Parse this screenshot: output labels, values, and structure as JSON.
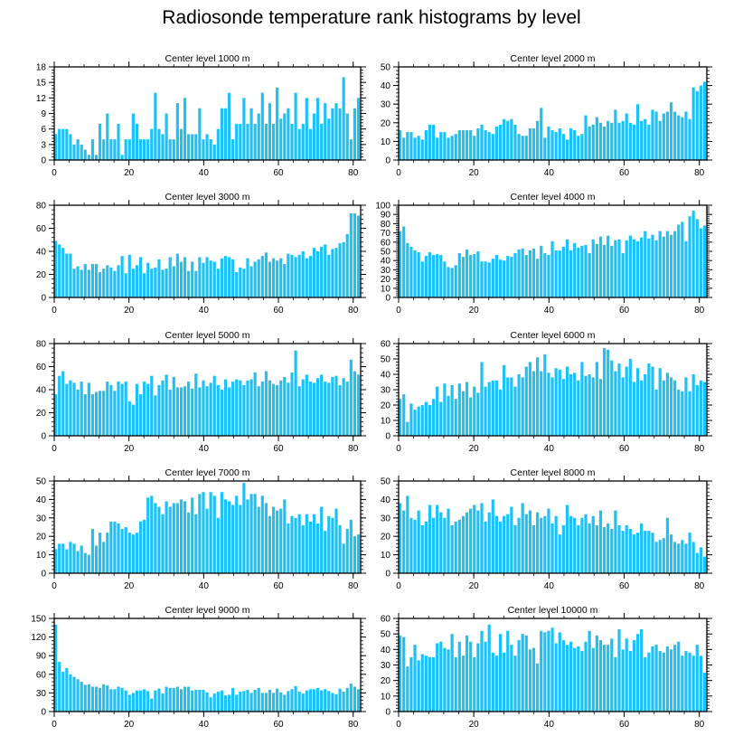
{
  "title": "Radiosonde temperature rank histograms by level",
  "colors": {
    "bar": "#1EC1F5",
    "bar_edge": "#0FB3EA",
    "axis": "#000000",
    "background": "#ffffff"
  },
  "chart_data": [
    {
      "type": "bar",
      "title": "Center level 1000 m",
      "xlabel": "",
      "ylabel": "",
      "xlim": [
        0,
        82
      ],
      "ylim": [
        0,
        18
      ],
      "xticks": [
        0,
        20,
        40,
        60,
        80
      ],
      "yticks": [
        0,
        3,
        6,
        9,
        12,
        15,
        18
      ],
      "ytick_side": "left",
      "values": [
        5,
        6,
        6,
        6,
        5,
        3,
        4,
        3,
        2,
        1,
        4,
        1,
        7,
        4,
        9,
        4,
        4,
        7,
        1,
        4,
        4,
        9,
        7,
        4,
        4,
        4,
        6,
        13,
        6,
        5,
        9,
        4,
        4,
        11,
        6,
        12,
        5,
        5,
        5,
        10,
        4,
        5,
        4,
        3,
        6,
        10,
        10,
        13,
        4,
        7,
        7,
        12,
        7,
        10,
        7,
        9,
        13,
        7,
        11,
        7,
        14,
        8,
        9,
        10,
        7,
        13,
        6,
        7,
        12,
        6,
        9,
        12,
        7,
        11,
        8,
        10,
        11,
        10,
        16,
        9,
        4,
        10,
        12
      ]
    },
    {
      "type": "bar",
      "title": "Center level 2000 m",
      "xlabel": "",
      "ylabel": "",
      "xlim": [
        0,
        82
      ],
      "ylim": [
        0,
        50
      ],
      "xticks": [
        0,
        20,
        40,
        60,
        80
      ],
      "yticks": [
        0,
        10,
        20,
        30,
        40,
        50
      ],
      "ytick_side": "left",
      "values": [
        16,
        12,
        15,
        15,
        12,
        13,
        11,
        16,
        19,
        19,
        12,
        15,
        15,
        12,
        13,
        14,
        16,
        16,
        16,
        16,
        13,
        17,
        19,
        16,
        15,
        14,
        18,
        19,
        22,
        21,
        22,
        19,
        14,
        13,
        13,
        17,
        17,
        21,
        28,
        12,
        18,
        16,
        15,
        17,
        14,
        11,
        17,
        16,
        13,
        14,
        24,
        18,
        19,
        23,
        20,
        18,
        21,
        20,
        27,
        20,
        21,
        25,
        20,
        19,
        30,
        21,
        22,
        19,
        27,
        26,
        21,
        25,
        26,
        31,
        26,
        24,
        23,
        26,
        22,
        39,
        37,
        40,
        42
      ]
    },
    {
      "type": "bar",
      "title": "Center level 3000 m",
      "xlabel": "",
      "ylabel": "",
      "xlim": [
        0,
        82
      ],
      "ylim": [
        0,
        80
      ],
      "xticks": [
        0,
        20,
        40,
        60,
        80
      ],
      "yticks": [
        0,
        20,
        40,
        60,
        80
      ],
      "ytick_side": "left",
      "values": [
        49,
        46,
        43,
        38,
        38,
        25,
        27,
        24,
        29,
        24,
        29,
        29,
        22,
        25,
        28,
        26,
        23,
        28,
        36,
        21,
        37,
        25,
        28,
        35,
        21,
        30,
        25,
        26,
        33,
        24,
        25,
        35,
        27,
        38,
        31,
        35,
        23,
        31,
        23,
        35,
        30,
        35,
        32,
        31,
        25,
        34,
        36,
        35,
        33,
        22,
        26,
        25,
        34,
        27,
        31,
        33,
        36,
        39,
        31,
        34,
        32,
        34,
        29,
        38,
        37,
        35,
        37,
        40,
        34,
        36,
        43,
        40,
        44,
        46,
        37,
        42,
        43,
        47,
        48,
        55,
        73,
        73,
        71
      ]
    },
    {
      "type": "bar",
      "title": "Center level 4000 m",
      "xlabel": "",
      "ylabel": "",
      "xlim": [
        0,
        82
      ],
      "ylim": [
        0,
        100
      ],
      "xticks": [
        0,
        20,
        40,
        60,
        80
      ],
      "yticks": [
        0,
        10,
        20,
        30,
        40,
        50,
        60,
        70,
        80,
        90,
        100
      ],
      "ytick_side": "left",
      "values": [
        72,
        77,
        59,
        55,
        51,
        49,
        39,
        45,
        49,
        46,
        47,
        46,
        39,
        33,
        32,
        35,
        48,
        44,
        52,
        46,
        47,
        50,
        39,
        39,
        38,
        42,
        46,
        41,
        40,
        45,
        44,
        48,
        52,
        53,
        46,
        51,
        53,
        42,
        56,
        48,
        46,
        61,
        51,
        51,
        55,
        63,
        51,
        59,
        54,
        56,
        57,
        48,
        63,
        58,
        66,
        57,
        67,
        56,
        62,
        63,
        48,
        62,
        67,
        63,
        61,
        65,
        72,
        64,
        68,
        62,
        72,
        66,
        72,
        68,
        72,
        79,
        82,
        61,
        88,
        94,
        85,
        75,
        78
      ]
    },
    {
      "type": "bar",
      "title": "Center level 5000 m",
      "xlabel": "",
      "ylabel": "",
      "xlim": [
        0,
        82
      ],
      "ylim": [
        0,
        80
      ],
      "xticks": [
        0,
        20,
        40,
        60,
        80
      ],
      "yticks": [
        0,
        20,
        40,
        60,
        80
      ],
      "ytick_side": "left",
      "values": [
        36,
        52,
        56,
        45,
        48,
        46,
        40,
        47,
        36,
        46,
        36,
        38,
        39,
        39,
        47,
        44,
        39,
        47,
        45,
        47,
        30,
        27,
        45,
        36,
        47,
        45,
        52,
        35,
        44,
        48,
        53,
        40,
        51,
        42,
        42,
        43,
        47,
        41,
        54,
        42,
        48,
        43,
        46,
        52,
        44,
        40,
        49,
        42,
        47,
        49,
        48,
        44,
        48,
        49,
        55,
        43,
        47,
        56,
        48,
        45,
        44,
        48,
        51,
        46,
        55,
        74,
        43,
        49,
        53,
        47,
        46,
        50,
        53,
        47,
        46,
        51,
        52,
        44,
        50,
        47,
        66,
        56,
        53
      ]
    },
    {
      "type": "bar",
      "title": "Center level 6000 m",
      "xlabel": "",
      "ylabel": "",
      "xlim": [
        0,
        82
      ],
      "ylim": [
        0,
        60
      ],
      "xticks": [
        0,
        20,
        40,
        60,
        80
      ],
      "yticks": [
        0,
        10,
        20,
        30,
        40,
        50,
        60
      ],
      "ytick_side": "left",
      "values": [
        24,
        27,
        9,
        21,
        17,
        19,
        20,
        22,
        20,
        24,
        32,
        22,
        34,
        26,
        33,
        24,
        34,
        29,
        35,
        25,
        32,
        28,
        48,
        32,
        35,
        36,
        36,
        30,
        46,
        38,
        38,
        32,
        40,
        38,
        45,
        48,
        42,
        51,
        42,
        53,
        41,
        38,
        44,
        43,
        37,
        45,
        40,
        41,
        36,
        48,
        39,
        40,
        38,
        48,
        37,
        57,
        56,
        49,
        42,
        47,
        38,
        45,
        50,
        35,
        44,
        36,
        40,
        47,
        45,
        30,
        44,
        36,
        41,
        38,
        36,
        30,
        29,
        38,
        29,
        40,
        33,
        36,
        35
      ]
    },
    {
      "type": "bar",
      "title": "Center level 7000 m",
      "xlabel": "",
      "ylabel": "",
      "xlim": [
        0,
        82
      ],
      "ylim": [
        0,
        50
      ],
      "xticks": [
        0,
        20,
        40,
        60,
        80
      ],
      "yticks": [
        0,
        10,
        20,
        30,
        40,
        50
      ],
      "ytick_side": "left",
      "values": [
        13,
        16,
        16,
        13,
        17,
        16,
        12,
        15,
        11,
        10,
        24,
        15,
        22,
        17,
        22,
        28,
        28,
        27,
        24,
        25,
        22,
        21,
        22,
        28,
        29,
        41,
        42,
        38,
        36,
        32,
        39,
        36,
        38,
        38,
        40,
        39,
        33,
        41,
        32,
        43,
        44,
        35,
        44,
        42,
        30,
        44,
        40,
        39,
        37,
        42,
        37,
        49,
        40,
        43,
        43,
        36,
        42,
        38,
        31,
        36,
        34,
        35,
        40,
        27,
        31,
        30,
        32,
        26,
        32,
        28,
        32,
        27,
        36,
        23,
        31,
        30,
        35,
        26,
        16,
        24,
        29,
        20,
        21
      ]
    },
    {
      "type": "bar",
      "title": "Center level 8000 m",
      "xlabel": "",
      "ylabel": "",
      "xlim": [
        0,
        82
      ],
      "ylim": [
        0,
        50
      ],
      "xticks": [
        0,
        20,
        40,
        60,
        80
      ],
      "yticks": [
        0,
        10,
        20,
        30,
        40,
        50
      ],
      "ytick_side": "left",
      "values": [
        38,
        34,
        42,
        30,
        29,
        34,
        26,
        28,
        37,
        30,
        37,
        33,
        30,
        35,
        26,
        28,
        29,
        31,
        33,
        35,
        37,
        34,
        38,
        28,
        33,
        40,
        31,
        28,
        31,
        32,
        36,
        26,
        30,
        38,
        32,
        34,
        26,
        33,
        30,
        31,
        35,
        27,
        31,
        21,
        26,
        37,
        31,
        30,
        26,
        30,
        32,
        27,
        31,
        26,
        34,
        25,
        27,
        24,
        34,
        26,
        23,
        26,
        24,
        21,
        22,
        27,
        23,
        23,
        22,
        17,
        18,
        19,
        30,
        21,
        17,
        16,
        18,
        16,
        22,
        17,
        11,
        14,
        9
      ]
    },
    {
      "type": "bar",
      "title": "Center level 9000 m",
      "xlabel": "",
      "ylabel": "",
      "xlim": [
        0,
        82
      ],
      "ylim": [
        0,
        150
      ],
      "xticks": [
        0,
        20,
        40,
        60,
        80
      ],
      "yticks": [
        0,
        30,
        60,
        90,
        120,
        150
      ],
      "ytick_side": "left",
      "values": [
        140,
        80,
        64,
        70,
        60,
        56,
        52,
        48,
        43,
        44,
        40,
        40,
        38,
        44,
        42,
        36,
        36,
        40,
        38,
        34,
        27,
        30,
        34,
        34,
        36,
        33,
        21,
        34,
        37,
        29,
        40,
        38,
        38,
        40,
        36,
        40,
        40,
        34,
        35,
        35,
        35,
        31,
        23,
        29,
        32,
        34,
        26,
        27,
        38,
        27,
        32,
        33,
        35,
        30,
        35,
        38,
        30,
        30,
        35,
        30,
        37,
        31,
        27,
        33,
        36,
        41,
        32,
        29,
        34,
        36,
        36,
        38,
        34,
        36,
        33,
        30,
        28,
        37,
        32,
        38,
        45,
        40,
        36
      ]
    },
    {
      "type": "bar",
      "title": "Center level 10000 m",
      "xlabel": "",
      "ylabel": "",
      "xlim": [
        0,
        82
      ],
      "ylim": [
        0,
        60
      ],
      "xticks": [
        0,
        20,
        40,
        60,
        80
      ],
      "yticks": [
        0,
        10,
        20,
        30,
        40,
        50,
        60
      ],
      "ytick_side": "left",
      "values": [
        49,
        48,
        29,
        35,
        43,
        33,
        37,
        36,
        35,
        35,
        44,
        45,
        41,
        40,
        50,
        35,
        45,
        36,
        49,
        45,
        35,
        44,
        52,
        45,
        56,
        38,
        36,
        50,
        38,
        52,
        43,
        36,
        46,
        50,
        49,
        40,
        41,
        31,
        52,
        51,
        52,
        54,
        44,
        51,
        46,
        43,
        45,
        41,
        42,
        39,
        45,
        52,
        41,
        49,
        46,
        43,
        43,
        47,
        35,
        53,
        40,
        47,
        39,
        46,
        50,
        53,
        35,
        38,
        42,
        43,
        39,
        38,
        42,
        40,
        43,
        45,
        36,
        39,
        38,
        36,
        43,
        36,
        25
      ]
    }
  ]
}
